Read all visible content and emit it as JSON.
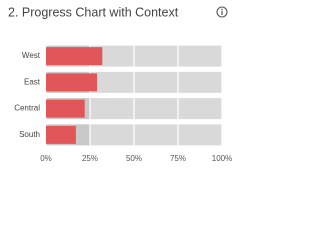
{
  "chart_data": {
    "type": "progress",
    "title": "2. Progress Chart with Context",
    "categories": [
      "West",
      "East",
      "Central",
      "South"
    ],
    "values": [
      32,
      29,
      22,
      17
    ],
    "reference": 25,
    "color": "#e15759",
    "background_color": "#d9d9d9",
    "reference_color": "#c9c9c9",
    "xlim": [
      0,
      100
    ],
    "xticks": [
      {
        "value": 0,
        "label": "0%"
      },
      {
        "value": 25,
        "label": "25%"
      },
      {
        "value": 50,
        "label": "50%"
      },
      {
        "value": 75,
        "label": "75%"
      },
      {
        "value": 100,
        "label": "100%"
      }
    ],
    "grid": true
  }
}
